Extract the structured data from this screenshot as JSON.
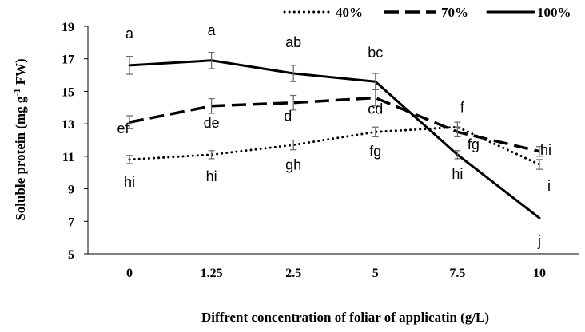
{
  "chart_data": {
    "type": "line",
    "title": "",
    "xlabel": "Diffrent concentration of foliar of applicatin (g/L)",
    "ylabel_main": "Soluble protein (mg g",
    "ylabel_sup": "-1",
    "ylabel_tail": " FW)",
    "categories": [
      "0",
      "1.25",
      "2.5",
      "5",
      "7.5",
      "10"
    ],
    "ylim": [
      5,
      19
    ],
    "yticks": [
      "5",
      "7",
      "9",
      "11",
      "13",
      "15",
      "17",
      "19"
    ],
    "grid": false,
    "legend_position": "top",
    "series": [
      {
        "name": "40%",
        "style": "dotted",
        "values": [
          10.8,
          11.1,
          11.7,
          12.5,
          12.8,
          10.5
        ],
        "errors": [
          0.25,
          0.25,
          0.3,
          0.3,
          0.3,
          0.3
        ],
        "letters": [
          "hi",
          "hi",
          "gh",
          "fg",
          "fg",
          "i"
        ]
      },
      {
        "name": "70%",
        "style": "dashed",
        "values": [
          13.1,
          14.1,
          14.3,
          14.6,
          12.5,
          11.3
        ],
        "errors": [
          0.4,
          0.45,
          0.45,
          0.5,
          0.3,
          0.3
        ],
        "letters": [
          "ef",
          "de",
          "d",
          "cd",
          "f",
          "hi"
        ]
      },
      {
        "name": "100%",
        "style": "solid",
        "values": [
          16.6,
          16.9,
          16.1,
          15.6,
          11.1,
          7.2
        ],
        "errors": [
          0.55,
          0.5,
          0.5,
          0.5,
          0.25,
          0.0
        ],
        "letters": [
          "a",
          "a",
          "ab",
          "bc",
          "hi",
          "j"
        ]
      }
    ]
  }
}
